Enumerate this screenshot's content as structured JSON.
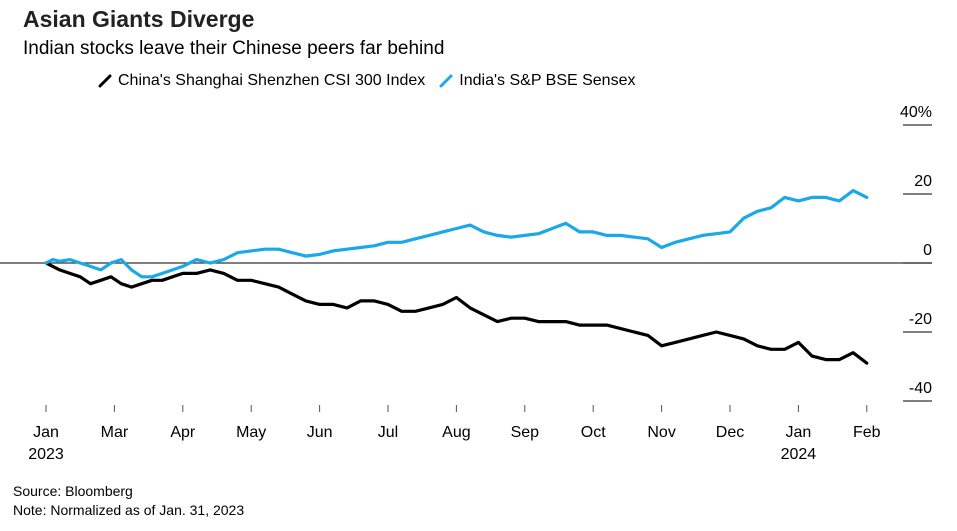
{
  "header": {
    "title": "Asian Giants Diverge",
    "subtitle": "Indian stocks leave their Chinese peers far behind"
  },
  "footer": {
    "source": "Source: Bloomberg",
    "note": "Note: Normalized as of Jan. 31, 2023"
  },
  "chart_data": {
    "type": "line",
    "title": "Asian Giants Diverge",
    "subtitle": "Indian stocks leave their Chinese peers far behind",
    "xlabel": "",
    "ylabel": "",
    "x_unit": "months since Jan 31, 2023",
    "x_ticks": [
      {
        "pos": 0,
        "label": "Jan",
        "sublabel": "2023"
      },
      {
        "pos": 1,
        "label": "Mar",
        "sublabel": ""
      },
      {
        "pos": 2,
        "label": "Apr",
        "sublabel": ""
      },
      {
        "pos": 3,
        "label": "May",
        "sublabel": ""
      },
      {
        "pos": 4,
        "label": "Jun",
        "sublabel": ""
      },
      {
        "pos": 5,
        "label": "Jul",
        "sublabel": ""
      },
      {
        "pos": 6,
        "label": "Aug",
        "sublabel": ""
      },
      {
        "pos": 7,
        "label": "Sep",
        "sublabel": ""
      },
      {
        "pos": 8,
        "label": "Oct",
        "sublabel": ""
      },
      {
        "pos": 9,
        "label": "Nov",
        "sublabel": ""
      },
      {
        "pos": 10,
        "label": "Dec",
        "sublabel": ""
      },
      {
        "pos": 11,
        "label": "Jan",
        "sublabel": "2024"
      },
      {
        "pos": 12,
        "label": "Feb",
        "sublabel": ""
      }
    ],
    "y_ticks": [
      {
        "value": 40,
        "label": "40%"
      },
      {
        "value": 20,
        "label": "20"
      },
      {
        "value": 0,
        "label": "0"
      },
      {
        "value": -20,
        "label": "-20"
      },
      {
        "value": -40,
        "label": "-40"
      }
    ],
    "xlim": [
      0,
      12.1
    ],
    "ylim": [
      -40,
      40
    ],
    "zero_line": true,
    "legend_position": "top",
    "series": [
      {
        "name": "China's Shanghai Shenzhen CSI 300 Index",
        "color": "#000000",
        "x": [
          0,
          0.1,
          0.2,
          0.35,
          0.5,
          0.65,
          0.8,
          0.95,
          1.1,
          1.25,
          1.4,
          1.55,
          1.7,
          1.85,
          2.0,
          2.2,
          2.4,
          2.6,
          2.8,
          3.0,
          3.2,
          3.4,
          3.6,
          3.8,
          4.0,
          4.2,
          4.4,
          4.6,
          4.8,
          5.0,
          5.2,
          5.4,
          5.6,
          5.8,
          6.0,
          6.2,
          6.4,
          6.6,
          6.8,
          7.0,
          7.2,
          7.4,
          7.6,
          7.8,
          8.0,
          8.2,
          8.4,
          8.6,
          8.8,
          9.0,
          9.2,
          9.4,
          9.6,
          9.8,
          10.0,
          10.2,
          10.4,
          10.6,
          10.8,
          11.0,
          11.2,
          11.4,
          11.6,
          11.8,
          12.0
        ],
        "y": [
          0,
          -1,
          -2,
          -3,
          -4,
          -6,
          -5,
          -4,
          -6,
          -7,
          -6,
          -5,
          -5,
          -4,
          -3,
          -3,
          -2,
          -3,
          -5,
          -5,
          -6,
          -7,
          -9,
          -11,
          -12,
          -12,
          -13,
          -11,
          -11,
          -12,
          -14,
          -14,
          -13,
          -12,
          -10,
          -13,
          -15,
          -17,
          -16,
          -16,
          -17,
          -17,
          -17,
          -18,
          -18,
          -18,
          -19,
          -20,
          -21,
          -24,
          -23,
          -22,
          -21,
          -20,
          -21,
          -22,
          -24,
          -25,
          -25,
          -23,
          -27,
          -28,
          -28,
          -26,
          -29
        ]
      },
      {
        "name": "India's S&P BSE Sensex",
        "color": "#1ba8ea",
        "x": [
          0,
          0.1,
          0.2,
          0.35,
          0.5,
          0.65,
          0.8,
          0.95,
          1.1,
          1.25,
          1.4,
          1.55,
          1.7,
          1.85,
          2.0,
          2.2,
          2.4,
          2.6,
          2.8,
          3.0,
          3.2,
          3.4,
          3.6,
          3.8,
          4.0,
          4.2,
          4.4,
          4.6,
          4.8,
          5.0,
          5.2,
          5.4,
          5.6,
          5.8,
          6.0,
          6.2,
          6.4,
          6.6,
          6.8,
          7.0,
          7.2,
          7.4,
          7.6,
          7.8,
          8.0,
          8.2,
          8.4,
          8.6,
          8.8,
          9.0,
          9.2,
          9.4,
          9.6,
          9.8,
          10.0,
          10.2,
          10.4,
          10.6,
          10.8,
          11.0,
          11.2,
          11.4,
          11.6,
          11.8,
          12.0
        ],
        "y": [
          0,
          1,
          0.5,
          1,
          0,
          -1,
          -2,
          0,
          1,
          -2,
          -4,
          -4,
          -3,
          -2,
          -1,
          1,
          0,
          1,
          3,
          3.5,
          4,
          4,
          3,
          2,
          2.5,
          3.5,
          4,
          4.5,
          5,
          6,
          6,
          7,
          8,
          9,
          10,
          11,
          9,
          8,
          7.5,
          8,
          8.5,
          10,
          11.5,
          9,
          9,
          8,
          8,
          7.5,
          7,
          4.5,
          6,
          7,
          8,
          8.5,
          9,
          13,
          15,
          16,
          19,
          18,
          19,
          19,
          18,
          21,
          19
        ]
      }
    ]
  }
}
